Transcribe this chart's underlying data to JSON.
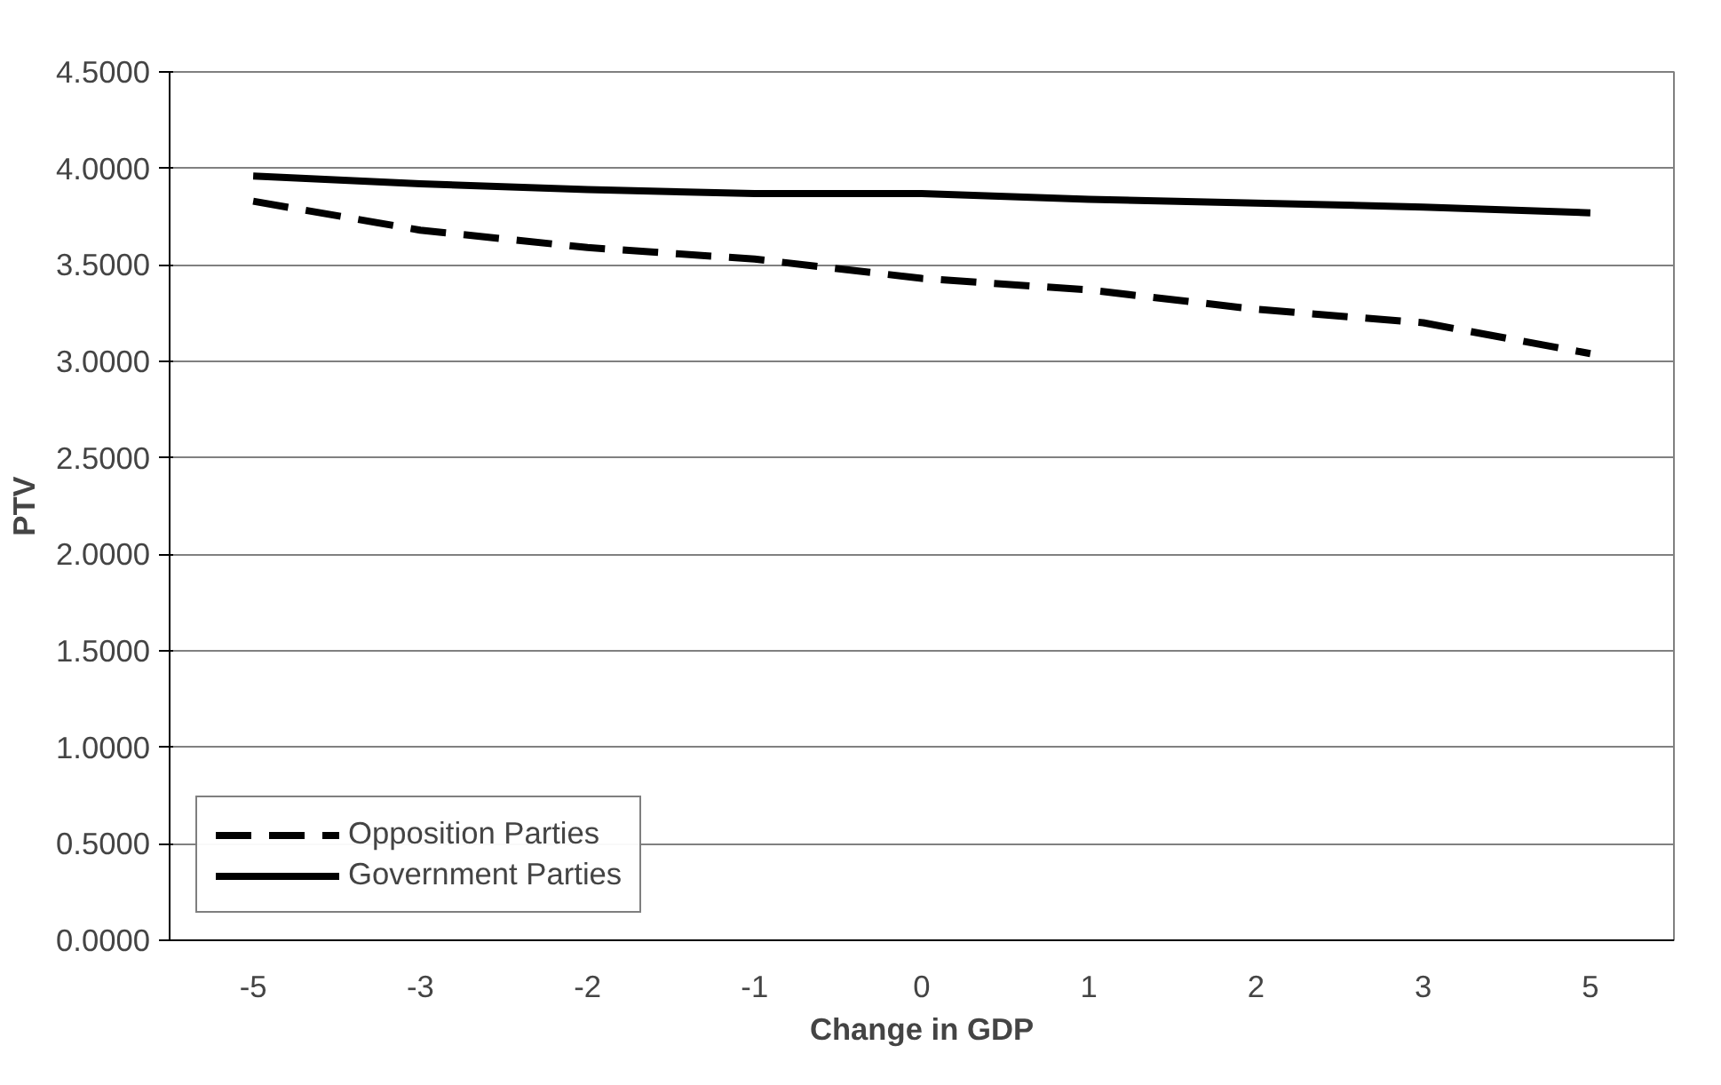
{
  "chart_data": {
    "type": "line",
    "xlabel": "Change in GDP",
    "ylabel": "PTV",
    "categories": [
      "-5",
      "-3",
      "-2",
      "-1",
      "0",
      "1",
      "2",
      "3",
      "5"
    ],
    "series": [
      {
        "name": "Opposition Parties",
        "color": "#000000",
        "line_style": "dashed",
        "values": [
          3.83,
          3.68,
          3.59,
          3.53,
          3.43,
          3.37,
          3.27,
          3.2,
          3.04
        ]
      },
      {
        "name": "Government Parties",
        "color": "#000000",
        "line_style": "solid",
        "values": [
          3.96,
          3.92,
          3.89,
          3.87,
          3.87,
          3.84,
          3.82,
          3.8,
          3.77
        ]
      }
    ],
    "ylim": [
      0,
      4.5
    ],
    "yticks": [
      {
        "value": 0,
        "label": "0.0000"
      },
      {
        "value": 0.5,
        "label": "0.5000"
      },
      {
        "value": 1,
        "label": "1.0000"
      },
      {
        "value": 1.5,
        "label": "1.5000"
      },
      {
        "value": 2,
        "label": "2.0000"
      },
      {
        "value": 2.5,
        "label": "2.5000"
      },
      {
        "value": 3,
        "label": "3.0000"
      },
      {
        "value": 3.5,
        "label": "3.5000"
      },
      {
        "value": 4,
        "label": "4.0000"
      },
      {
        "value": 4.5,
        "label": "4.5000"
      }
    ],
    "grid": "y",
    "legend": "bottom left",
    "marker": "none"
  }
}
